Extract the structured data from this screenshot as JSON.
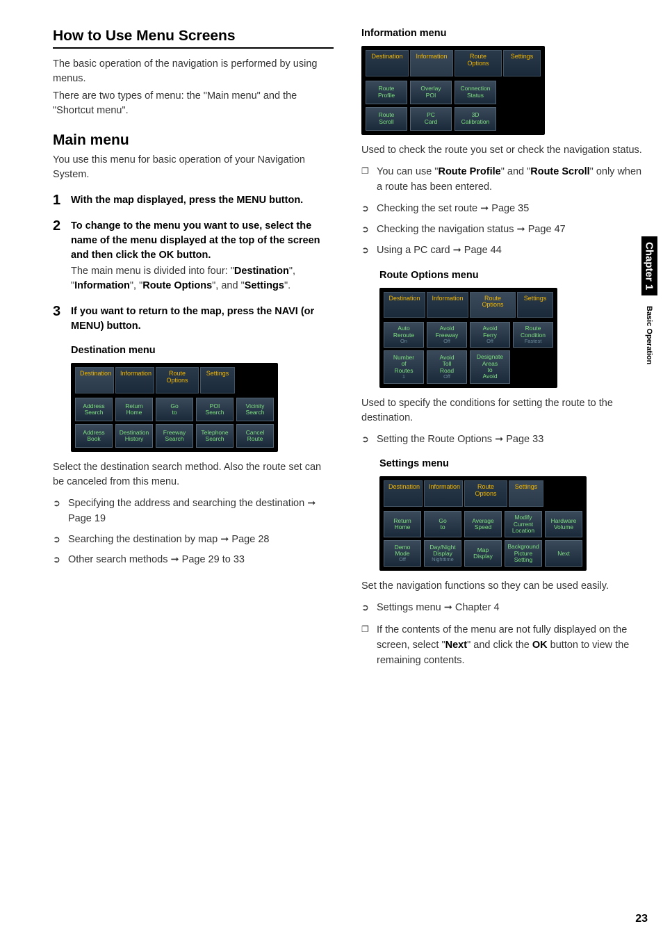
{
  "left": {
    "title": "How to Use Menu Screens",
    "intro1": "The basic operation of the navigation is performed by using menus.",
    "intro2": "There are two types of menu: the \"Main menu\" and the \"Shortcut menu\".",
    "mainMenuTitle": "Main menu",
    "mainMenuDesc": "You use this menu for basic operation of your Navigation System.",
    "steps": [
      {
        "num": "1",
        "head": "With the map displayed, press the MENU button."
      },
      {
        "num": "2",
        "head": "To change to the menu you want to use, select the name of the menu displayed at the top of the screen and then click the OK button.",
        "cont": "The main menu is divided into four: \"Destination\", \"Information\", \"Route Options\", and \"Settings\"."
      },
      {
        "num": "3",
        "head": "If you want to return to the map, press the NAVI (or MENU) button."
      }
    ],
    "destMenu": {
      "heading": "Destination menu",
      "tabs": [
        "Destination",
        "Information",
        "Route Options",
        "Settings"
      ],
      "activeTab": 0,
      "rows": [
        [
          "Address Search",
          "Return Home",
          "Go to",
          "POI Search",
          "Vicinity Search"
        ],
        [
          "Address Book",
          "Destination History",
          "Freeway Search",
          "Telephone Search",
          "Cancel Route"
        ]
      ],
      "tabWidths": [
        60,
        60,
        64,
        52
      ]
    },
    "destDesc": "Select the destination search method. Also the route set can be canceled from this menu.",
    "destRefs": [
      "Specifying the address and searching the destination ➞ Page 19",
      "Searching the destination by map ➞ Page 28",
      "Other search methods ➞ Page 29 to 33"
    ]
  },
  "right": {
    "infoMenu": {
      "heading": "Information menu",
      "tabs": [
        "Destination",
        "Information",
        "Route Options",
        "Settings"
      ],
      "activeTab": 1,
      "rows": [
        [
          "Route Profile",
          "Overlay POI",
          "Connection Status"
        ],
        [
          "Route Scroll",
          "PC Card",
          "3D Calibration"
        ]
      ]
    },
    "infoDesc": "Used to check the route you set or check the navigation status.",
    "infoBox": "You can use \"Route Profile\" and \"Route Scroll\" only when a route has been entered.",
    "infoRefs": [
      "Checking the set route ➞ Page 35",
      "Checking the navigation status ➞ Page 47",
      "Using a PC card ➞ Page 44"
    ],
    "routeMenu": {
      "heading": "Route Options menu",
      "tabs": [
        "Destination",
        "Information",
        "Route Options",
        "Settings"
      ],
      "activeTab": 2,
      "rows": [
        [
          {
            "t": "Auto Reroute",
            "s": "On"
          },
          {
            "t": "Avoid Freeway",
            "s": "Off"
          },
          {
            "t": "Avoid Ferry",
            "s": "Off"
          },
          {
            "t": "Route Condition",
            "s": "Fastest"
          }
        ],
        [
          {
            "t": "Number of Routes",
            "s": "1"
          },
          {
            "t": "Avoid Toll Road",
            "s": "Off"
          },
          {
            "t": "Designate Areas to Avoid",
            "s": ""
          },
          null
        ]
      ]
    },
    "routeDesc": "Used to specify the conditions for setting the route to the destination.",
    "routeRefs": [
      "Setting the Route Options ➞ Page 33"
    ],
    "settingsMenu": {
      "heading": "Settings menu",
      "tabs": [
        "Destination",
        "Information",
        "Route Options",
        "Settings"
      ],
      "activeTab": 3,
      "rows": [
        [
          {
            "t": "Return Home"
          },
          {
            "t": "Go to"
          },
          {
            "t": "Average Speed"
          },
          {
            "t": "Modify Current Location"
          },
          {
            "t": "Hardware Volume"
          }
        ],
        [
          {
            "t": "Demo Mode",
            "s": "Off"
          },
          {
            "t": "Day/Night Display",
            "s": "Nighttime"
          },
          {
            "t": "Map Display"
          },
          {
            "t": "Background Picture Setting"
          },
          {
            "t": "Next"
          }
        ]
      ]
    },
    "settingsDesc": "Set the navigation functions so they can be used easily.",
    "settingsRefs": [
      "Settings menu ➞ Chapter 4"
    ],
    "settingsBox": "If the contents of the menu are not fully displayed on the screen, select \"Next\" and click the OK button to view the remaining contents."
  },
  "side": {
    "chapter": "Chapter 1",
    "section": "Basic Operation"
  },
  "pageNum": "23",
  "colors": {
    "screenBg": "#000000",
    "cellGradTop": "#3a4a5a",
    "cellGradBot": "#1a2a3a",
    "cellText": "#7fe080",
    "tabText": "#f5b800",
    "border": "#556677"
  }
}
